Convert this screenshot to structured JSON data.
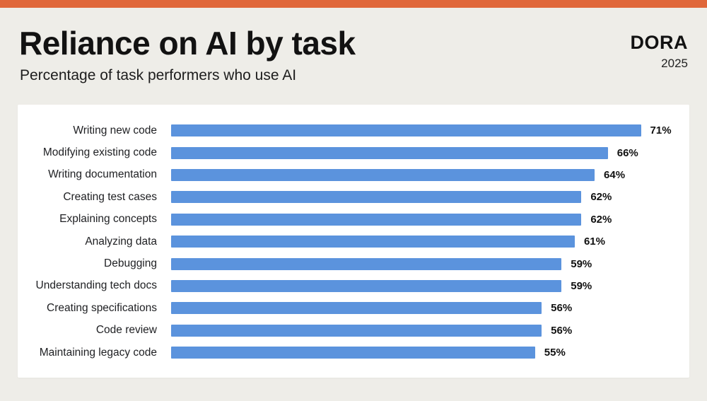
{
  "header": {
    "brand": "DORA",
    "year": "2025"
  },
  "chart_data": {
    "type": "bar",
    "orientation": "horizontal",
    "title": "Reliance on AI by task",
    "subtitle": "Percentage of task performers who use AI",
    "categories": [
      "Writing new code",
      "Modifying existing code",
      "Writing documentation",
      "Creating test cases",
      "Explaining concepts",
      "Analyzing data",
      "Debugging",
      "Understanding tech docs",
      "Creating specifications",
      "Code review",
      "Maintaining legacy code"
    ],
    "values": [
      71,
      66,
      64,
      62,
      62,
      61,
      59,
      59,
      56,
      56,
      55
    ],
    "value_suffix": "%",
    "xlim": [
      0,
      75
    ],
    "grid": false,
    "legend": false,
    "bar_color": "#5B93DD",
    "accent_color": "#E0673A",
    "background_color": "#EEEDE8",
    "panel_color": "#FFFFFF"
  }
}
